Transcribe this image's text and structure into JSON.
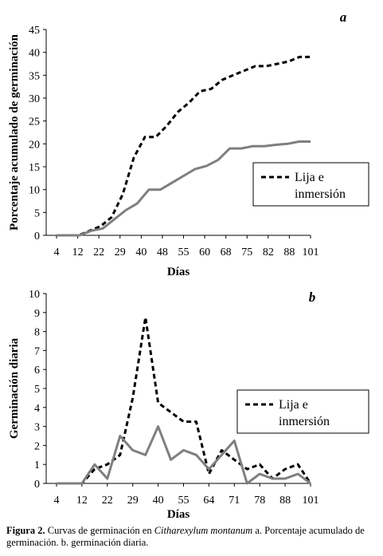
{
  "chart_data": [
    {
      "type": "line",
      "panel_letter": "a",
      "xlabel": "Días",
      "ylabel": "Porcentaje acumulado de germinación",
      "ylim": [
        0,
        45
      ],
      "yticks": [
        0,
        5,
        10,
        15,
        20,
        25,
        30,
        35,
        40,
        45
      ],
      "x_tick_labels": [
        "4",
        "12",
        "22",
        "29",
        "40",
        "48",
        "55",
        "60",
        "68",
        "75",
        "82",
        "88",
        "101"
      ],
      "grid": false,
      "legend": {
        "placement": "right",
        "entries": [
          "Lija e inmersión"
        ]
      },
      "series": [
        {
          "name": "Lija e inmersión",
          "style": "dashed",
          "color": "#000000",
          "values": [
            0,
            0,
            0,
            1,
            2,
            4,
            9,
            17,
            21.5,
            21.5,
            24,
            27,
            29,
            31.5,
            32,
            34,
            35,
            36,
            37,
            37,
            37.5,
            38,
            39,
            39
          ]
        },
        {
          "style": "solid",
          "color": "#7f7f7f",
          "values": [
            0,
            0,
            0,
            1,
            1.5,
            3.5,
            5.5,
            7,
            10,
            10,
            11.5,
            13,
            14.5,
            15.2,
            16.5,
            19,
            19,
            19.5,
            19.5,
            19.8,
            20,
            20.5,
            20.5
          ]
        }
      ]
    },
    {
      "type": "line",
      "panel_letter": "b",
      "xlabel": "Días",
      "ylabel": "Germinación diaria",
      "ylim": [
        0,
        10
      ],
      "yticks": [
        0,
        1,
        2,
        3,
        4,
        5,
        6,
        7,
        8,
        9,
        10
      ],
      "x_tick_labels": [
        "4",
        "12",
        "22",
        "29",
        "40",
        "55",
        "64",
        "71",
        "78",
        "88",
        "101"
      ],
      "grid": false,
      "legend": {
        "placement": "right",
        "entries": [
          "Lija e inmersión"
        ]
      },
      "series": [
        {
          "name": "Lija e inmersión",
          "style": "dashed",
          "color": "#000000",
          "values": [
            0,
            0,
            0,
            0.75,
            1,
            1.5,
            4.5,
            8.75,
            4.25,
            3.75,
            3.25,
            3.25,
            0.5,
            1.75,
            1.25,
            0.75,
            1,
            0.25,
            0.75,
            1,
            0
          ]
        },
        {
          "style": "solid",
          "color": "#7f7f7f",
          "values": [
            0,
            0,
            0,
            1,
            0.25,
            2.5,
            1.75,
            1.5,
            3,
            1.25,
            1.75,
            1.5,
            0.75,
            1.5,
            2.25,
            0,
            0.5,
            0.25,
            0.25,
            0.5,
            0
          ]
        }
      ]
    }
  ],
  "caption": {
    "label": "Figura 2.",
    "text_before": " Curvas de germinación  en  ",
    "species": "Citharexylum montanum",
    "text_after": " a. Porcentaje acumulado de germinación. b. germinación diaria."
  }
}
